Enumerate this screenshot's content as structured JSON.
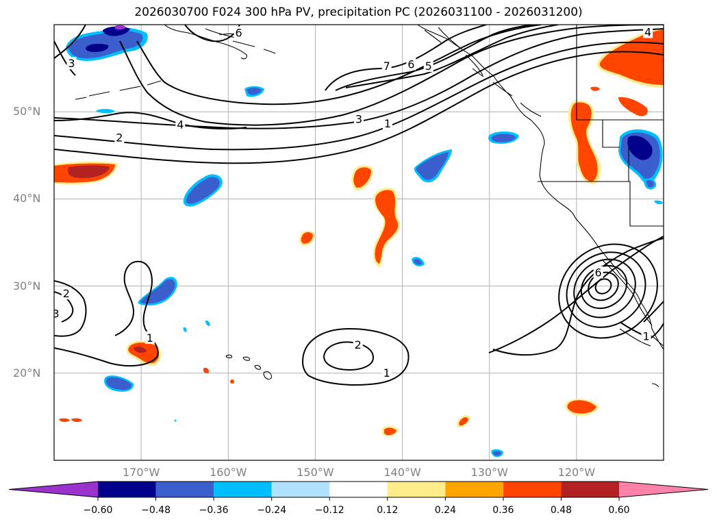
{
  "figure": {
    "title": "2026030700 F024 300 hPa PV, precipitation PC (2026031100 - 2026031200)"
  },
  "chart_data": {
    "type": "map-contour",
    "title": "2026030700 F024 300 hPa PV, precipitation PC (2026031100 - 2026031200)",
    "lon_range": [
      -180,
      -110
    ],
    "lat_range": [
      10,
      60
    ],
    "lat_ticks": [
      {
        "value": 20,
        "label": "20°N"
      },
      {
        "value": 30,
        "label": "30°N"
      },
      {
        "value": 40,
        "label": "40°N"
      },
      {
        "value": 50,
        "label": "50°N"
      }
    ],
    "lon_ticks": [
      {
        "value": -170,
        "label": "170°W"
      },
      {
        "value": -160,
        "label": "160°W"
      },
      {
        "value": -150,
        "label": "150°W"
      },
      {
        "value": -140,
        "label": "140°W"
      },
      {
        "value": -130,
        "label": "130°W"
      },
      {
        "value": -120,
        "label": "120°W"
      }
    ],
    "colorbar": {
      "ticks": [
        "−0.60",
        "−0.48",
        "−0.36",
        "−0.24",
        "−0.12",
        "0.12",
        "0.24",
        "0.36",
        "0.48",
        "0.60"
      ],
      "colors": [
        "#9a32cd",
        "#00008b",
        "#3a5fcd",
        "#00bfff",
        "#b0e2ff",
        "#ffffff",
        "#ffec8b",
        "#ffa500",
        "#ff4500",
        "#b22222",
        "#ff82ab"
      ],
      "extend": "both"
    },
    "pv_contour_labels": [
      {
        "text": "6",
        "lon": -158.8,
        "lat": 59.0
      },
      {
        "text": "3",
        "lon": -178.0,
        "lat": 55.5
      },
      {
        "text": "4",
        "lon": -165.5,
        "lat": 48.5
      },
      {
        "text": "2",
        "lon": -172.5,
        "lat": 47.0
      },
      {
        "text": "7",
        "lon": -141.8,
        "lat": 55.2
      },
      {
        "text": "6",
        "lon": -139.0,
        "lat": 55.4
      },
      {
        "text": "5",
        "lon": -137.0,
        "lat": 55.2
      },
      {
        "text": "3",
        "lon": -145.0,
        "lat": 49.1
      },
      {
        "text": "1",
        "lon": -141.7,
        "lat": 48.6
      },
      {
        "text": "4",
        "lon": -111.8,
        "lat": 59.1
      },
      {
        "text": "2",
        "lon": -178.6,
        "lat": 29.1
      },
      {
        "text": "3",
        "lon": -179.8,
        "lat": 26.8
      },
      {
        "text": "1",
        "lon": -169.0,
        "lat": 24.0
      },
      {
        "text": "2",
        "lon": -145.1,
        "lat": 23.2
      },
      {
        "text": "1",
        "lon": -141.8,
        "lat": 20.0
      },
      {
        "text": "6",
        "lon": -117.5,
        "lat": 31.5
      },
      {
        "text": "1",
        "lon": -112.0,
        "lat": 24.2
      }
    ],
    "precip_regions": [
      {
        "sign": "negative",
        "max_abs": 0.6,
        "lon": -174.5,
        "lat": 57.0
      },
      {
        "sign": "negative",
        "max_abs": 0.48,
        "lon": -109.3,
        "lat": 45.8
      },
      {
        "sign": "positive",
        "max_abs": 0.48,
        "lon": -111.0,
        "lat": 56.3
      },
      {
        "sign": "positive",
        "max_abs": 0.48,
        "lon": -175.0,
        "lat": 43.0
      },
      {
        "sign": "positive",
        "max_abs": 0.36,
        "lon": -142.0,
        "lat": 38.5
      },
      {
        "sign": "positive",
        "max_abs": 0.36,
        "lon": -119.0,
        "lat": 46.0
      },
      {
        "sign": "positive",
        "max_abs": 0.48,
        "lon": -169.7,
        "lat": 22.7
      },
      {
        "sign": "negative",
        "max_abs": 0.36,
        "lon": -163.7,
        "lat": 40.9
      },
      {
        "sign": "negative",
        "max_abs": 0.36,
        "lon": -136.1,
        "lat": 43.5
      },
      {
        "sign": "negative",
        "max_abs": 0.36,
        "lon": -167.7,
        "lat": 29.5
      },
      {
        "sign": "positive",
        "max_abs": 0.36,
        "lon": -119.5,
        "lat": 15.8
      }
    ]
  }
}
